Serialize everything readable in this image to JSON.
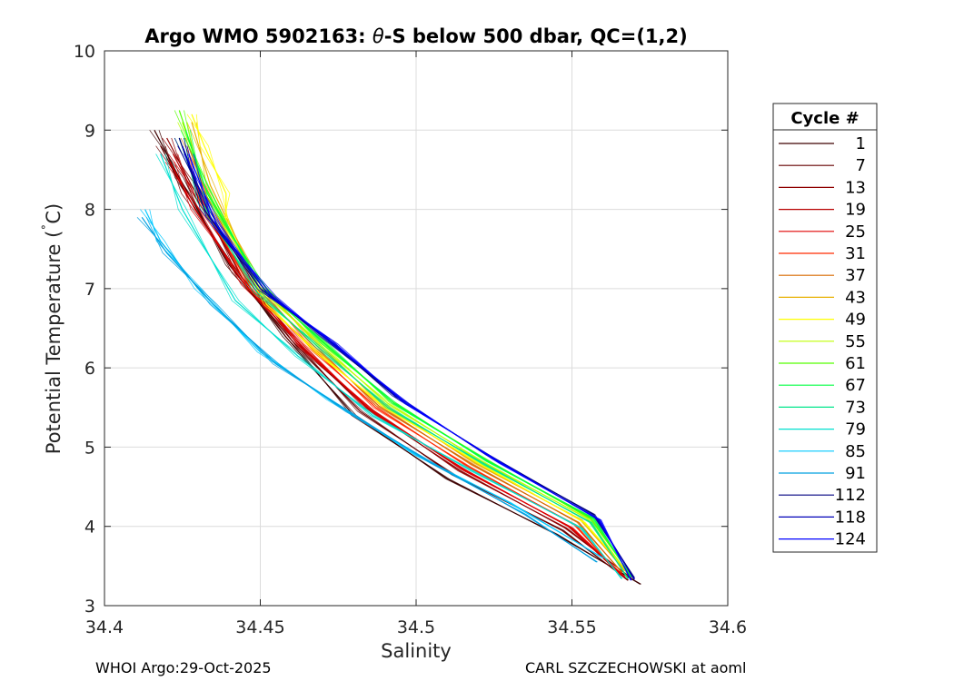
{
  "chart_data": {
    "type": "line",
    "title_prefix": "Argo WMO 5902163: ",
    "title_theta": "θ",
    "title_suffix": "-S below 500 dbar,  QC=(1,2)",
    "xlabel": "Salinity",
    "ylabel_prefix": "Potential Temperature (",
    "ylabel_degree": "˚",
    "ylabel_suffix": "C)",
    "xlim": [
      34.4,
      34.6
    ],
    "ylim": [
      3,
      10
    ],
    "x_ticks": [
      34.4,
      34.45,
      34.5,
      34.55,
      34.6
    ],
    "x_tick_labels": [
      "34.4",
      "34.45",
      "34.5",
      "34.55",
      "34.6"
    ],
    "y_ticks": [
      3,
      4,
      5,
      6,
      7,
      8,
      9,
      10
    ],
    "y_tick_labels": [
      "3",
      "4",
      "5",
      "6",
      "7",
      "8",
      "9",
      "10"
    ],
    "grid": true,
    "legend_title": "Cycle #",
    "legend_position": "right",
    "series": [
      {
        "name": "1",
        "color": "#3d0000",
        "values": [
          [
            34.416,
            9.0
          ],
          [
            34.424,
            8.4
          ],
          [
            34.44,
            7.3
          ],
          [
            34.458,
            6.4
          ],
          [
            34.48,
            5.4
          ],
          [
            34.51,
            4.6
          ],
          [
            34.545,
            3.9
          ],
          [
            34.572,
            3.27
          ]
        ]
      },
      {
        "name": "7",
        "color": "#660000",
        "values": [
          [
            34.418,
            8.8
          ],
          [
            34.426,
            8.2
          ],
          [
            34.442,
            7.2
          ],
          [
            34.46,
            6.35
          ],
          [
            34.482,
            5.45
          ],
          [
            34.512,
            4.65
          ],
          [
            34.547,
            3.95
          ],
          [
            34.568,
            3.32
          ]
        ]
      },
      {
        "name": "13",
        "color": "#8f0000",
        "values": [
          [
            34.42,
            8.9
          ],
          [
            34.428,
            8.3
          ],
          [
            34.444,
            7.15
          ],
          [
            34.462,
            6.3
          ],
          [
            34.484,
            5.5
          ],
          [
            34.514,
            4.7
          ],
          [
            34.548,
            3.98
          ],
          [
            34.569,
            3.35
          ]
        ]
      },
      {
        "name": "19",
        "color": "#b80000",
        "values": [
          [
            34.422,
            8.7
          ],
          [
            34.43,
            8.1
          ],
          [
            34.446,
            7.1
          ],
          [
            34.463,
            6.28
          ],
          [
            34.485,
            5.48
          ],
          [
            34.515,
            4.72
          ],
          [
            34.549,
            4.0
          ],
          [
            34.566,
            3.38
          ]
        ]
      },
      {
        "name": "25",
        "color": "#e00000",
        "values": [
          [
            34.421,
            8.6
          ],
          [
            34.429,
            8.0
          ],
          [
            34.445,
            7.05
          ],
          [
            34.464,
            6.25
          ],
          [
            34.486,
            5.45
          ],
          [
            34.516,
            4.7
          ],
          [
            34.55,
            3.98
          ],
          [
            34.567,
            3.36
          ]
        ]
      },
      {
        "name": "31",
        "color": "#ff2a00",
        "values": [
          [
            34.425,
            8.8
          ],
          [
            34.432,
            8.05
          ],
          [
            34.447,
            7.0
          ],
          [
            34.465,
            6.3
          ],
          [
            34.487,
            5.5
          ],
          [
            34.517,
            4.75
          ],
          [
            34.551,
            4.02
          ],
          [
            34.565,
            3.4
          ]
        ]
      },
      {
        "name": "37",
        "color": "#d96a00",
        "values": [
          [
            34.426,
            8.9
          ],
          [
            34.433,
            8.15
          ],
          [
            34.448,
            7.05
          ],
          [
            34.466,
            6.32
          ],
          [
            34.488,
            5.52
          ],
          [
            34.518,
            4.78
          ],
          [
            34.552,
            4.05
          ],
          [
            34.566,
            3.42
          ]
        ]
      },
      {
        "name": "43",
        "color": "#e8b000",
        "values": [
          [
            34.428,
            9.1
          ],
          [
            34.434,
            8.3
          ],
          [
            34.449,
            7.1
          ],
          [
            34.467,
            6.35
          ],
          [
            34.489,
            5.55
          ],
          [
            34.519,
            4.8
          ],
          [
            34.553,
            4.08
          ],
          [
            34.567,
            3.44
          ]
        ]
      },
      {
        "name": "49",
        "color": "#ffff00",
        "values": [
          [
            34.428,
            9.2
          ],
          [
            34.432,
            8.8
          ],
          [
            34.439,
            8.2
          ],
          [
            34.439,
            7.8
          ],
          [
            34.452,
            6.8
          ],
          [
            34.468,
            6.2
          ],
          [
            34.49,
            5.5
          ],
          [
            34.52,
            4.8
          ],
          [
            34.554,
            4.05
          ],
          [
            34.568,
            3.42
          ]
        ]
      },
      {
        "name": "55",
        "color": "#bfff00",
        "values": [
          [
            34.425,
            9.1
          ],
          [
            34.433,
            8.2
          ],
          [
            34.45,
            7.0
          ],
          [
            34.469,
            6.3
          ],
          [
            34.491,
            5.55
          ],
          [
            34.521,
            4.82
          ],
          [
            34.555,
            4.1
          ],
          [
            34.568,
            3.4
          ]
        ]
      },
      {
        "name": "61",
        "color": "#55ff00",
        "values": [
          [
            34.424,
            9.25
          ],
          [
            34.432,
            8.3
          ],
          [
            34.45,
            7.05
          ],
          [
            34.47,
            6.32
          ],
          [
            34.492,
            5.58
          ],
          [
            34.522,
            4.85
          ],
          [
            34.556,
            4.1
          ],
          [
            34.569,
            3.38
          ]
        ]
      },
      {
        "name": "67",
        "color": "#00ff40",
        "values": [
          [
            34.426,
            9.0
          ],
          [
            34.433,
            8.2
          ],
          [
            34.451,
            7.0
          ],
          [
            34.471,
            6.3
          ],
          [
            34.493,
            5.55
          ],
          [
            34.523,
            4.82
          ],
          [
            34.557,
            4.1
          ],
          [
            34.569,
            3.36
          ]
        ]
      },
      {
        "name": "73",
        "color": "#00e68a",
        "values": [
          [
            34.424,
            8.9
          ],
          [
            34.431,
            8.1
          ],
          [
            34.449,
            6.95
          ],
          [
            34.469,
            6.25
          ],
          [
            34.491,
            5.5
          ],
          [
            34.522,
            4.78
          ],
          [
            34.556,
            4.05
          ],
          [
            34.568,
            3.34
          ]
        ]
      },
      {
        "name": "79",
        "color": "#00e0d0",
        "values": [
          [
            34.418,
            8.7
          ],
          [
            34.425,
            8.0
          ],
          [
            34.442,
            6.85
          ],
          [
            34.462,
            6.15
          ],
          [
            34.486,
            5.4
          ],
          [
            34.518,
            4.7
          ],
          [
            34.553,
            3.98
          ],
          [
            34.566,
            3.34
          ]
        ]
      },
      {
        "name": "85",
        "color": "#00c8ff",
        "values": [
          [
            34.413,
            8.0
          ],
          [
            34.418,
            7.6
          ],
          [
            34.43,
            7.0
          ],
          [
            34.45,
            6.2
          ],
          [
            34.472,
            5.6
          ],
          [
            34.5,
            4.9
          ],
          [
            34.53,
            4.3
          ],
          [
            34.56,
            3.6
          ]
        ]
      },
      {
        "name": "91",
        "color": "#00a0e0",
        "values": [
          [
            34.412,
            7.9
          ],
          [
            34.42,
            7.45
          ],
          [
            34.435,
            6.8
          ],
          [
            34.455,
            6.05
          ],
          [
            34.478,
            5.45
          ],
          [
            34.505,
            4.8
          ],
          [
            34.535,
            4.15
          ],
          [
            34.558,
            3.55
          ]
        ]
      },
      {
        "name": "112",
        "color": "#000080",
        "values": [
          [
            34.424,
            8.9
          ],
          [
            34.432,
            8.0
          ],
          [
            34.45,
            7.0
          ],
          [
            34.47,
            6.4
          ],
          [
            34.493,
            5.65
          ],
          [
            34.523,
            4.9
          ],
          [
            34.557,
            4.15
          ],
          [
            34.57,
            3.35
          ]
        ]
      },
      {
        "name": "118",
        "color": "#0000b8",
        "values": [
          [
            34.425,
            8.8
          ],
          [
            34.434,
            7.9
          ],
          [
            34.452,
            6.95
          ],
          [
            34.472,
            6.35
          ],
          [
            34.495,
            5.6
          ],
          [
            34.525,
            4.85
          ],
          [
            34.558,
            4.1
          ],
          [
            34.57,
            3.33
          ]
        ]
      },
      {
        "name": "124",
        "color": "#0000ff",
        "values": [
          [
            34.427,
            8.7
          ],
          [
            34.436,
            7.8
          ],
          [
            34.454,
            6.9
          ],
          [
            34.474,
            6.3
          ],
          [
            34.497,
            5.55
          ],
          [
            34.527,
            4.8
          ],
          [
            34.559,
            4.08
          ],
          [
            34.569,
            3.32
          ]
        ]
      }
    ]
  },
  "footer": {
    "left": "WHOI Argo:29-Oct-2025",
    "right": "CARL SZCZECHOWSKI at aoml"
  }
}
